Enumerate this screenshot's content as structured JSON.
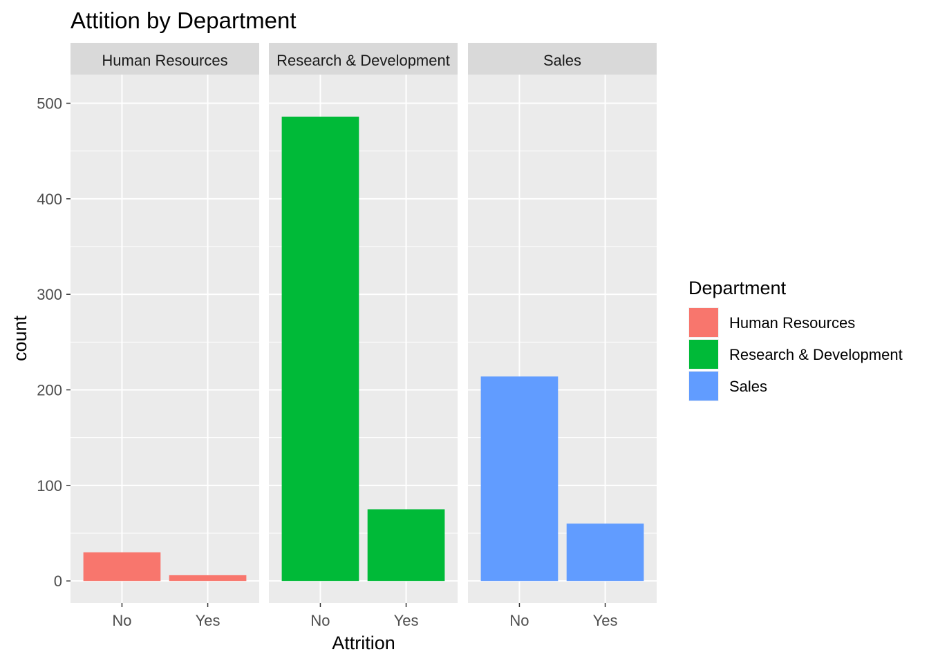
{
  "chart_data": {
    "type": "bar",
    "title": "Attition by Department",
    "xlabel": "Attrition",
    "ylabel": "count",
    "categories": [
      "No",
      "Yes"
    ],
    "ylim": [
      -23,
      530
    ],
    "yticks": [
      "0",
      "100",
      "200",
      "300",
      "400",
      "500"
    ],
    "facets": [
      {
        "name": "Human Resources",
        "values": [
          30,
          6
        ],
        "color": "#F8766D"
      },
      {
        "name": "Research & Development",
        "values": [
          486,
          75
        ],
        "color": "#00BA38"
      },
      {
        "name": "Sales",
        "values": [
          214,
          60
        ],
        "color": "#619CFF"
      }
    ],
    "legend": {
      "title": "Department",
      "position": "right",
      "items": [
        "Human Resources",
        "Research & Development",
        "Sales"
      ]
    },
    "grid": true
  }
}
